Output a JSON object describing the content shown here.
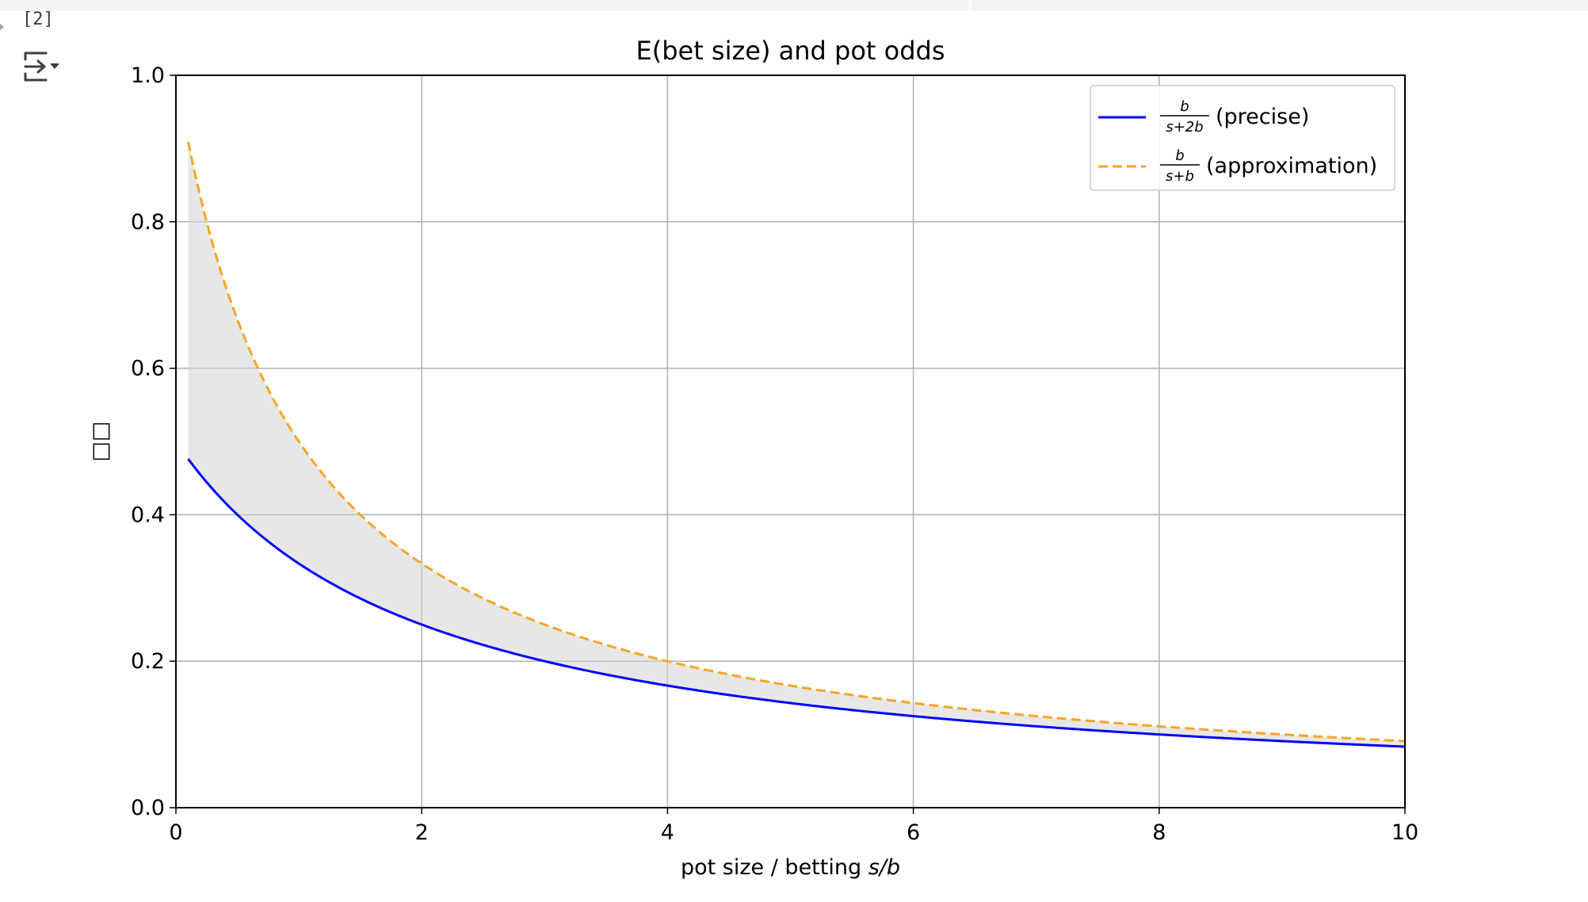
{
  "cell": {
    "execution_count": "[2]",
    "toggle_icon": "output-toggle-icon"
  },
  "chart_data": {
    "type": "line",
    "title": "E(bet size) and pot odds",
    "xlabel": "pot size / betting s/b",
    "xlabel_plain": "pot size / betting ",
    "xlabel_math": "s/b",
    "ylabel": "□□",
    "xlim": [
      0,
      10
    ],
    "ylim": [
      0,
      1.0
    ],
    "xticks": [
      "0",
      "2",
      "4",
      "6",
      "8",
      "10"
    ],
    "yticks": [
      "0.0",
      "0.2",
      "0.4",
      "0.6",
      "0.8",
      "1.0"
    ],
    "grid": true,
    "legend_position": "top-right",
    "x_range": [
      0.1,
      10
    ],
    "series": [
      {
        "name": "b/(s+2b) (precise)",
        "legend_frac_num": "b",
        "legend_frac_den": "s+2b",
        "legend_text": "(precise)",
        "formula": "1/(x+2)",
        "color": "#0000ff",
        "style": "solid",
        "values": [
          [
            0.1,
            0.476
          ],
          [
            0.5,
            0.4
          ],
          [
            1,
            0.333
          ],
          [
            2,
            0.25
          ],
          [
            4,
            0.167
          ],
          [
            6,
            0.125
          ],
          [
            8,
            0.1
          ],
          [
            10,
            0.083
          ]
        ]
      },
      {
        "name": "b/(s+b) (approximation)",
        "legend_frac_num": "b",
        "legend_frac_den": "s+b",
        "legend_text": "(approximation)",
        "formula": "1/(x+1)",
        "color": "#f5a623",
        "style": "dashed",
        "values": [
          [
            0.1,
            0.909
          ],
          [
            0.5,
            0.667
          ],
          [
            1,
            0.5
          ],
          [
            2,
            0.333
          ],
          [
            4,
            0.2
          ],
          [
            6,
            0.143
          ],
          [
            8,
            0.111
          ],
          [
            10,
            0.091
          ]
        ]
      }
    ],
    "fill_between": {
      "color": "#d3d3d3",
      "opacity": 0.55
    }
  }
}
